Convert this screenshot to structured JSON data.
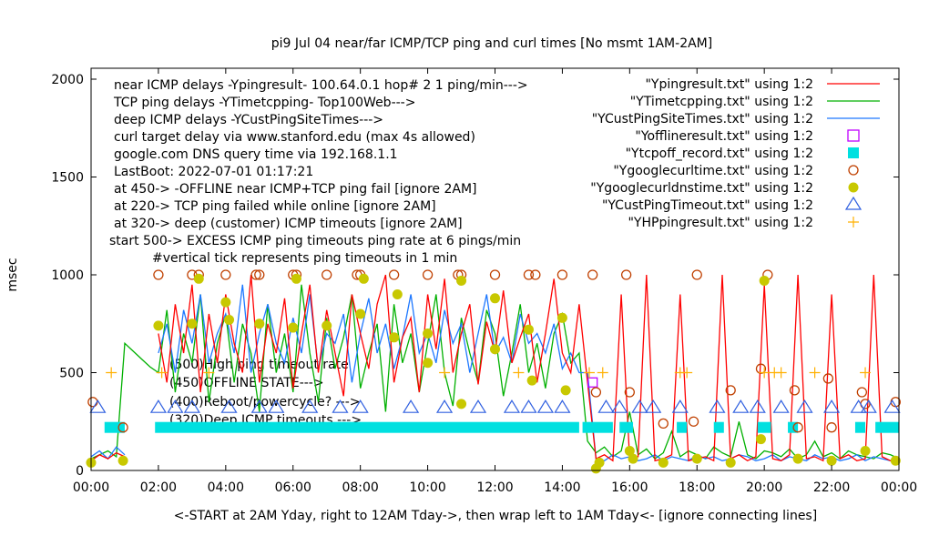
{
  "chart_data": {
    "type": "line",
    "title": "pi9 Jul 04  near/far ICMP/TCP ping and curl times [No msmt 1AM-2AM]",
    "xlabel": "<-START at 2AM Yday, right to 12AM Tday->, then wrap left to 1AM Tday<- [ignore connecting lines]",
    "ylabel": "msec",
    "xlim": [
      0,
      24
    ],
    "ylim": [
      0,
      2000
    ],
    "xticks": [
      "00:00",
      "02:00",
      "04:00",
      "06:00",
      "08:00",
      "10:00",
      "12:00",
      "14:00",
      "16:00",
      "18:00",
      "20:00",
      "22:00",
      "00:00"
    ],
    "yticks": [
      "0",
      "500",
      "1000",
      "1500",
      "2000"
    ],
    "notes": [
      "near ICMP delays -Ypingresult- 100.64.0.1 hop# 2 1 ping/min--->",
      "TCP ping delays -YTimetcpping- Top100Web--->",
      "deep ICMP delays -YCustPingSiteTimes--->",
      "curl target delay via www.stanford.edu (max 4s allowed)",
      "google.com DNS query time via 192.168.1.1",
      "LastBoot: 2022-07-01 01:17:21",
      "at 450-> -OFFLINE near ICMP+TCP ping fail [ignore 2AM]",
      "at 220-> TCP ping failed while online [ignore 2AM]",
      "at 320-> deep (customer) ICMP timeouts [ignore 2AM]",
      "start 500-> EXCESS ICMP ping timeouts ping rate at 6 pings/min",
      "#vertical tick represents ping timeouts in 1 min"
    ],
    "level_labels": [
      "(500)High ping timeout rate",
      "(450)OFFLINE STATE--->",
      "(400)Reboot/powercycle? --->",
      "(320)Deep ICMP timeouts --->"
    ],
    "x_step_hours": 0.25,
    "series": [
      {
        "name": "\"Ypingresult.txt\" using 1:2",
        "color": "#ff0000",
        "style": "line",
        "values": [
          50,
          80,
          60,
          90,
          70,
          null,
          null,
          null,
          700,
          450,
          850,
          600,
          950,
          400,
          800,
          550,
          900,
          650,
          500,
          1000,
          450,
          750,
          600,
          880,
          420,
          700,
          950,
          500,
          820,
          600,
          380,
          900,
          700,
          520,
          850,
          1000,
          450,
          680,
          780,
          400,
          900,
          620,
          980,
          500,
          700,
          850,
          440,
          760,
          600,
          920,
          550,
          680,
          800,
          450,
          700,
          980,
          600,
          500,
          850,
          450,
          60,
          80,
          50,
          900,
          60,
          70,
          1000,
          50,
          60,
          80,
          900,
          50,
          60,
          70,
          50,
          1000,
          60,
          80,
          50,
          70,
          950,
          60,
          50,
          80,
          1000,
          60,
          70,
          50,
          900,
          60,
          80,
          50,
          60,
          1000,
          70,
          50,
          60
        ]
      },
      {
        "name": "\"YTimetcpping.txt\" using 1:2",
        "color": "#00b000",
        "style": "line",
        "values": [
          60,
          80,
          100,
          70,
          650,
          610,
          570,
          530,
          500,
          820,
          400,
          700,
          550,
          900,
          350,
          650,
          800,
          450,
          750,
          600,
          300,
          850,
          500,
          700,
          400,
          950,
          600,
          350,
          780,
          520,
          680,
          900,
          420,
          600,
          750,
          300,
          850,
          550,
          700,
          400,
          650,
          900,
          500,
          330,
          780,
          600,
          450,
          820,
          700,
          380,
          600,
          850,
          500,
          650,
          420,
          700,
          800,
          550,
          600,
          150,
          90,
          120,
          70,
          100,
          300,
          80,
          110,
          60,
          90,
          200,
          70,
          100,
          80,
          60,
          120,
          90,
          70,
          250,
          80,
          60,
          100,
          90,
          70,
          110,
          60,
          80,
          150,
          70,
          90,
          60,
          100,
          80,
          70,
          60,
          90,
          80,
          60
        ]
      },
      {
        "name": "\"YCustPingSiteTimes.txt\" using 1:2",
        "color": "#1e78ff",
        "style": "line",
        "values": [
          70,
          100,
          60,
          120,
          80,
          null,
          null,
          null,
          600,
          750,
          500,
          820,
          650,
          900,
          550,
          700,
          800,
          600,
          950,
          500,
          700,
          850,
          650,
          550,
          780,
          600,
          900,
          520,
          700,
          650,
          800,
          450,
          700,
          880,
          600,
          750,
          520,
          680,
          900,
          600,
          700,
          550,
          820,
          650,
          750,
          500,
          700,
          900,
          600,
          680,
          550,
          800,
          650,
          700,
          600,
          750,
          520,
          600,
          500,
          500,
          60,
          50,
          80,
          60,
          70,
          50,
          60,
          80,
          50,
          70,
          60,
          50,
          80,
          60,
          70,
          50,
          60,
          80,
          70,
          50,
          60,
          80,
          50,
          70,
          60,
          50,
          80,
          60,
          70,
          50,
          60,
          80,
          50,
          70,
          60,
          50,
          60
        ]
      }
    ],
    "scatter": [
      {
        "name": "\"Yofflineresult.txt\" using 1:2",
        "color": "#c000ff",
        "marker": "open-square",
        "points": [
          [
            14.9,
            450
          ]
        ]
      },
      {
        "name": "\"Ytcpoff_record.txt\" using 1:2",
        "color": "#00e0e0",
        "marker": "filled-square-band",
        "segments": [
          [
            0.4,
            1.0,
            220
          ],
          [
            1.9,
            14.5,
            220
          ],
          [
            14.6,
            15.5,
            220
          ],
          [
            15.7,
            16.1,
            220
          ],
          [
            17.4,
            17.7,
            220
          ],
          [
            18.5,
            18.8,
            220
          ],
          [
            19.8,
            20.2,
            220
          ],
          [
            20.7,
            21.0,
            220
          ],
          [
            22.7,
            23.0,
            220
          ],
          [
            23.3,
            24.0,
            220
          ]
        ]
      },
      {
        "name": "\"Ygooglecurltime.txt\" using 1:2",
        "color": "#c04000",
        "marker": "open-circle",
        "points": [
          [
            0.05,
            350
          ],
          [
            0.95,
            220
          ],
          [
            2.0,
            1000
          ],
          [
            3.0,
            1000
          ],
          [
            3.2,
            1000
          ],
          [
            4.0,
            1000
          ],
          [
            4.9,
            1000
          ],
          [
            5.0,
            1000
          ],
          [
            6.0,
            1000
          ],
          [
            6.1,
            1000
          ],
          [
            7.0,
            1000
          ],
          [
            7.9,
            1000
          ],
          [
            8.0,
            1000
          ],
          [
            9.0,
            1000
          ],
          [
            10.0,
            1000
          ],
          [
            10.9,
            1000
          ],
          [
            11.0,
            1000
          ],
          [
            12.0,
            1000
          ],
          [
            13.0,
            1000
          ],
          [
            13.2,
            1000
          ],
          [
            14.0,
            1000
          ],
          [
            14.9,
            1000
          ],
          [
            15.0,
            400
          ],
          [
            15.9,
            1000
          ],
          [
            16.0,
            400
          ],
          [
            17.0,
            240
          ],
          [
            17.9,
            250
          ],
          [
            18.0,
            1000
          ],
          [
            19.0,
            410
          ],
          [
            19.9,
            520
          ],
          [
            20.1,
            1000
          ],
          [
            20.9,
            410
          ],
          [
            21.0,
            220
          ],
          [
            21.9,
            470
          ],
          [
            22.0,
            220
          ],
          [
            22.9,
            400
          ],
          [
            23.0,
            340
          ],
          [
            23.9,
            350
          ]
        ]
      },
      {
        "name": "\"Ygooglecurldnstime.txt\" using 1:2",
        "color": "#c8c800",
        "marker": "filled-circle",
        "points": [
          [
            0.0,
            40
          ],
          [
            0.95,
            50
          ],
          [
            2.0,
            740
          ],
          [
            3.0,
            750
          ],
          [
            3.2,
            980
          ],
          [
            4.0,
            860
          ],
          [
            4.1,
            770
          ],
          [
            5.0,
            750
          ],
          [
            6.0,
            730
          ],
          [
            6.1,
            980
          ],
          [
            7.0,
            740
          ],
          [
            8.0,
            800
          ],
          [
            8.1,
            980
          ],
          [
            9.0,
            680
          ],
          [
            9.1,
            900
          ],
          [
            10.0,
            550
          ],
          [
            10.0,
            700
          ],
          [
            11.0,
            970
          ],
          [
            11.0,
            340
          ],
          [
            12.0,
            880
          ],
          [
            12.0,
            620
          ],
          [
            13.0,
            720
          ],
          [
            13.1,
            460
          ],
          [
            14.0,
            780
          ],
          [
            14.1,
            410
          ],
          [
            15.0,
            10
          ],
          [
            15.1,
            40
          ],
          [
            16.0,
            100
          ],
          [
            16.1,
            60
          ],
          [
            17.0,
            40
          ],
          [
            18.0,
            60
          ],
          [
            19.0,
            40
          ],
          [
            19.9,
            160
          ],
          [
            20.0,
            970
          ],
          [
            21.0,
            60
          ],
          [
            22.0,
            50
          ],
          [
            23.0,
            100
          ],
          [
            23.9,
            50
          ]
        ]
      },
      {
        "name": "\"YCustPingTimeout.txt\" using 1:2",
        "color": "#3060e0",
        "marker": "open-triangle",
        "points": [
          [
            0.2,
            320
          ],
          [
            2.0,
            320
          ],
          [
            2.5,
            320
          ],
          [
            3.0,
            320
          ],
          [
            4.1,
            320
          ],
          [
            5.0,
            320
          ],
          [
            5.5,
            320
          ],
          [
            6.5,
            320
          ],
          [
            7.4,
            320
          ],
          [
            8.0,
            320
          ],
          [
            9.5,
            320
          ],
          [
            10.5,
            320
          ],
          [
            11.5,
            320
          ],
          [
            12.5,
            320
          ],
          [
            13.0,
            320
          ],
          [
            13.5,
            320
          ],
          [
            14.0,
            320
          ],
          [
            15.3,
            320
          ],
          [
            15.7,
            320
          ],
          [
            16.3,
            320
          ],
          [
            16.7,
            320
          ],
          [
            17.5,
            320
          ],
          [
            18.6,
            320
          ],
          [
            19.3,
            320
          ],
          [
            19.8,
            320
          ],
          [
            20.5,
            320
          ],
          [
            21.2,
            320
          ],
          [
            22.0,
            320
          ],
          [
            22.8,
            320
          ],
          [
            23.1,
            320
          ],
          [
            23.8,
            320
          ]
        ]
      },
      {
        "name": "\"YHPpingresult.txt\" using 1:2",
        "color": "#ffb000",
        "marker": "plus",
        "points": [
          [
            0.6,
            500
          ],
          [
            2.1,
            500
          ],
          [
            3.5,
            500
          ],
          [
            10.5,
            500
          ],
          [
            12.7,
            500
          ],
          [
            14.8,
            500
          ],
          [
            15.2,
            500
          ],
          [
            17.5,
            500
          ],
          [
            17.7,
            500
          ],
          [
            20.0,
            500
          ],
          [
            20.3,
            500
          ],
          [
            20.5,
            500
          ],
          [
            21.5,
            500
          ],
          [
            23.0,
            500
          ]
        ]
      }
    ],
    "legend_position": "top-right"
  }
}
